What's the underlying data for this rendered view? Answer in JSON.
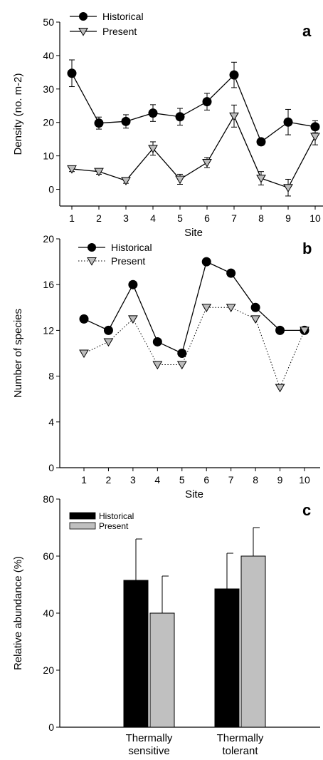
{
  "chart_data": [
    {
      "panel": "a",
      "type": "line",
      "xlabel": "Site",
      "ylabel": "Density (no. m-2)",
      "ylim": [
        -5,
        50
      ],
      "yticks": [
        0,
        10,
        20,
        30,
        40,
        50
      ],
      "x": [
        1,
        2,
        3,
        4,
        5,
        6,
        7,
        8,
        9,
        10
      ],
      "legend": "top-left",
      "series": [
        {
          "name": "Historical",
          "marker": "circle",
          "line": "solid",
          "values": [
            34.7,
            19.8,
            20.3,
            22.8,
            21.7,
            26.2,
            34.2,
            14.2,
            20.1,
            18.7
          ],
          "err": [
            4.0,
            1.8,
            2.0,
            2.5,
            2.5,
            2.5,
            3.8,
            0.8,
            3.8,
            1.8
          ]
        },
        {
          "name": "Present",
          "marker": "triangle-down",
          "line": "solid",
          "values": [
            6.1,
            5.3,
            2.6,
            12.2,
            3.0,
            8.0,
            21.9,
            3.3,
            0.5,
            15.8
          ],
          "err": [
            0.8,
            0.8,
            0.8,
            2.0,
            1.5,
            1.5,
            3.3,
            2.0,
            2.5,
            2.5
          ]
        }
      ]
    },
    {
      "panel": "b",
      "type": "line",
      "xlabel": "Site",
      "ylabel": "Number of species",
      "ylim": [
        0,
        20
      ],
      "yticks": [
        0,
        4,
        8,
        12,
        16,
        20
      ],
      "x": [
        1,
        2,
        3,
        4,
        5,
        6,
        7,
        8,
        9,
        10
      ],
      "legend": "top-left",
      "series": [
        {
          "name": "Historical",
          "marker": "circle",
          "line": "solid",
          "values": [
            13,
            12,
            16,
            11,
            10,
            18,
            17,
            14,
            12,
            12
          ]
        },
        {
          "name": "Present",
          "marker": "triangle-down",
          "line": "dotted",
          "values": [
            10,
            11,
            13,
            9,
            9,
            14,
            14,
            13,
            7,
            12
          ]
        }
      ]
    },
    {
      "panel": "c",
      "type": "bar",
      "ylabel": "Relative abundance (%)",
      "ylim": [
        0,
        80
      ],
      "yticks": [
        0,
        20,
        40,
        60,
        80
      ],
      "categories": [
        "Thermally sensitive",
        "Thermally tolerant"
      ],
      "category_lines": [
        [
          "Thermally",
          "sensitive"
        ],
        [
          "Thermally",
          "tolerant"
        ]
      ],
      "legend": "top-left",
      "series": [
        {
          "name": "Historical",
          "color": "#000000",
          "values": [
            51.5,
            48.5
          ],
          "err": [
            14.5,
            12.5
          ]
        },
        {
          "name": "Present",
          "color": "#c0c0c0",
          "values": [
            40,
            60
          ],
          "err": [
            13,
            10
          ]
        }
      ]
    }
  ]
}
